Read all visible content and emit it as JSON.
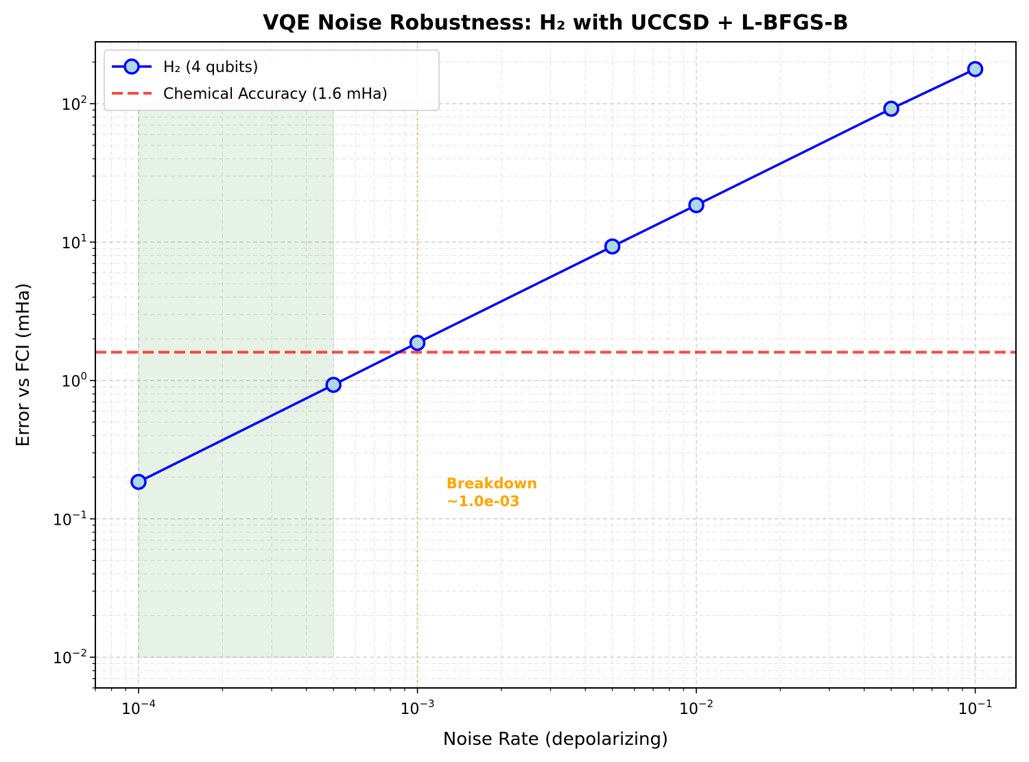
{
  "chart_data": {
    "type": "line",
    "title": "VQE Noise Robustness: H₂ with UCCSD + L-BFGS-B",
    "xlabel": "Noise Rate (depolarizing)",
    "ylabel": "Error vs FCI (mHa)",
    "xscale": "log",
    "yscale": "log",
    "xlim": [
      7e-05,
      0.14
    ],
    "ylim": [
      0.006,
      280
    ],
    "grid": true,
    "legend_position": "top-left",
    "x_ticks": [
      {
        "value": 0.0001,
        "base": "10",
        "exp": "−4"
      },
      {
        "value": 0.001,
        "base": "10",
        "exp": "−3"
      },
      {
        "value": 0.01,
        "base": "10",
        "exp": "−2"
      },
      {
        "value": 0.1,
        "base": "10",
        "exp": "−1"
      }
    ],
    "y_ticks": [
      {
        "value": 0.01,
        "base": "10",
        "exp": "−2"
      },
      {
        "value": 0.1,
        "base": "10",
        "exp": "−1"
      },
      {
        "value": 1,
        "base": "10",
        "exp": "0"
      },
      {
        "value": 10,
        "base": "10",
        "exp": "1"
      },
      {
        "value": 100,
        "base": "10",
        "exp": "2"
      }
    ],
    "series": [
      {
        "name": "H₂ (4 qubits)",
        "color": "#0000ff",
        "marker_fill": "#add8e6",
        "x": [
          0.0001,
          0.0005,
          0.001,
          0.005,
          0.01,
          0.05,
          0.1
        ],
        "y": [
          0.185,
          0.93,
          1.87,
          9.3,
          18.5,
          92,
          178
        ]
      }
    ],
    "reference_line": {
      "name": "Chemical Accuracy (1.6 mHa)",
      "y": 1.6,
      "color": "#ff0000"
    },
    "breakdown_line": {
      "x": 0.001,
      "color": "#ffa500"
    },
    "shaded_region": {
      "x": [
        0.0001,
        0.0005
      ],
      "y": [
        0.01,
        100
      ],
      "color": "#008000"
    },
    "annotation": {
      "lines": [
        "Breakdown",
        "~1.0e-03"
      ],
      "x": 0.0012,
      "y": 0.14,
      "color": "#ffa500"
    }
  }
}
